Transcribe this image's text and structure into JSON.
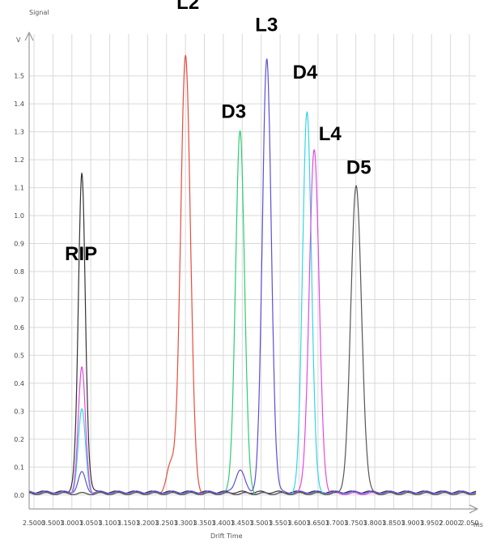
{
  "chart_data": {
    "type": "line",
    "ylabel": "Signal",
    "yunit": "V",
    "xlabel": "Drift Time",
    "xunit": "ms",
    "xlim": [
      0,
      50
    ],
    "ylim": [
      -0.05,
      1.65
    ],
    "yticks": [
      0.0,
      0.1,
      0.2,
      0.3,
      0.4,
      0.5,
      0.6,
      0.7,
      0.8,
      0.9,
      1.0,
      1.1,
      1.2,
      1.3,
      1.4,
      1.5
    ],
    "ytick_labels": [
      "0.0",
      "0.1",
      "0.2",
      "0.3",
      "0.4",
      "0.5",
      "0.6",
      "0.7",
      "0.8",
      "0.9",
      "1.0",
      "1.1",
      "1.2",
      "1.3",
      "1.4",
      "1.5"
    ],
    "xtick_labels": [
      "2.5000",
      "3.5001",
      "3.0001",
      "3.0501",
      "3.1001",
      "3.1501",
      "3.2001",
      "3.2501",
      "3.3001",
      "3.3501",
      "3.4001",
      "3.4501",
      "3.5001",
      "3.5501",
      "3.6001",
      "3.6501",
      "3.7001",
      "3.7501",
      "3.8001",
      "3.8501",
      "3.9001",
      "3.9502",
      "2.0002",
      "2.050"
    ],
    "grid": true,
    "legend": "none",
    "series": [
      {
        "name": "RIP",
        "color": "#333333",
        "peaks": [
          {
            "x": 5.9,
            "height": 0.78,
            "width": 0.35
          },
          {
            "x": 5.9,
            "height": 0.36,
            "width": 0.5
          }
        ],
        "baseline": 0.01
      },
      {
        "name": "L2",
        "color": "#e74c3c",
        "peaks": [
          {
            "x": 17.5,
            "height": 1.57,
            "width": 0.55
          },
          {
            "x": 15.8,
            "height": 0.1,
            "width": 0.45
          }
        ],
        "baseline": 0.005
      },
      {
        "name": "D3",
        "color": "#2ecc71",
        "peaks": [
          {
            "x": 23.6,
            "height": 1.3,
            "width": 0.5
          }
        ],
        "baseline": 0.005
      },
      {
        "name": "L3",
        "color": "#5b4fd6",
        "peaks": [
          {
            "x": 26.6,
            "height": 1.55,
            "width": 0.5
          },
          {
            "x": 23.6,
            "height": 0.08,
            "width": 0.5
          },
          {
            "x": 5.9,
            "height": 0.07,
            "width": 0.4
          }
        ],
        "baseline": 0.01
      },
      {
        "name": "D4",
        "color": "#33d6e6",
        "peaks": [
          {
            "x": 31.1,
            "height": 1.37,
            "width": 0.5
          },
          {
            "x": 5.9,
            "height": 0.3,
            "width": 0.4
          }
        ],
        "baseline": 0.005
      },
      {
        "name": "L4",
        "color": "#e04ae0",
        "peaks": [
          {
            "x": 31.9,
            "height": 1.23,
            "width": 0.55
          },
          {
            "x": 5.9,
            "height": 0.45,
            "width": 0.4
          }
        ],
        "baseline": 0.005
      },
      {
        "name": "D5",
        "color": "#555555",
        "peaks": [
          {
            "x": 36.6,
            "height": 1.1,
            "width": 0.6
          }
        ],
        "baseline": 0.005
      }
    ],
    "peak_labels": [
      {
        "text": "RIP",
        "x": 4.0,
        "y": 0.84
      },
      {
        "text": "L2",
        "x": 16.5,
        "y": 1.74
      },
      {
        "text": "D3",
        "x": 21.5,
        "y": 1.35
      },
      {
        "text": "L3",
        "x": 25.3,
        "y": 1.66
      },
      {
        "text": "D4",
        "x": 29.5,
        "y": 1.49
      },
      {
        "text": "L4",
        "x": 32.4,
        "y": 1.27
      },
      {
        "text": "D5",
        "x": 35.5,
        "y": 1.15
      }
    ]
  }
}
